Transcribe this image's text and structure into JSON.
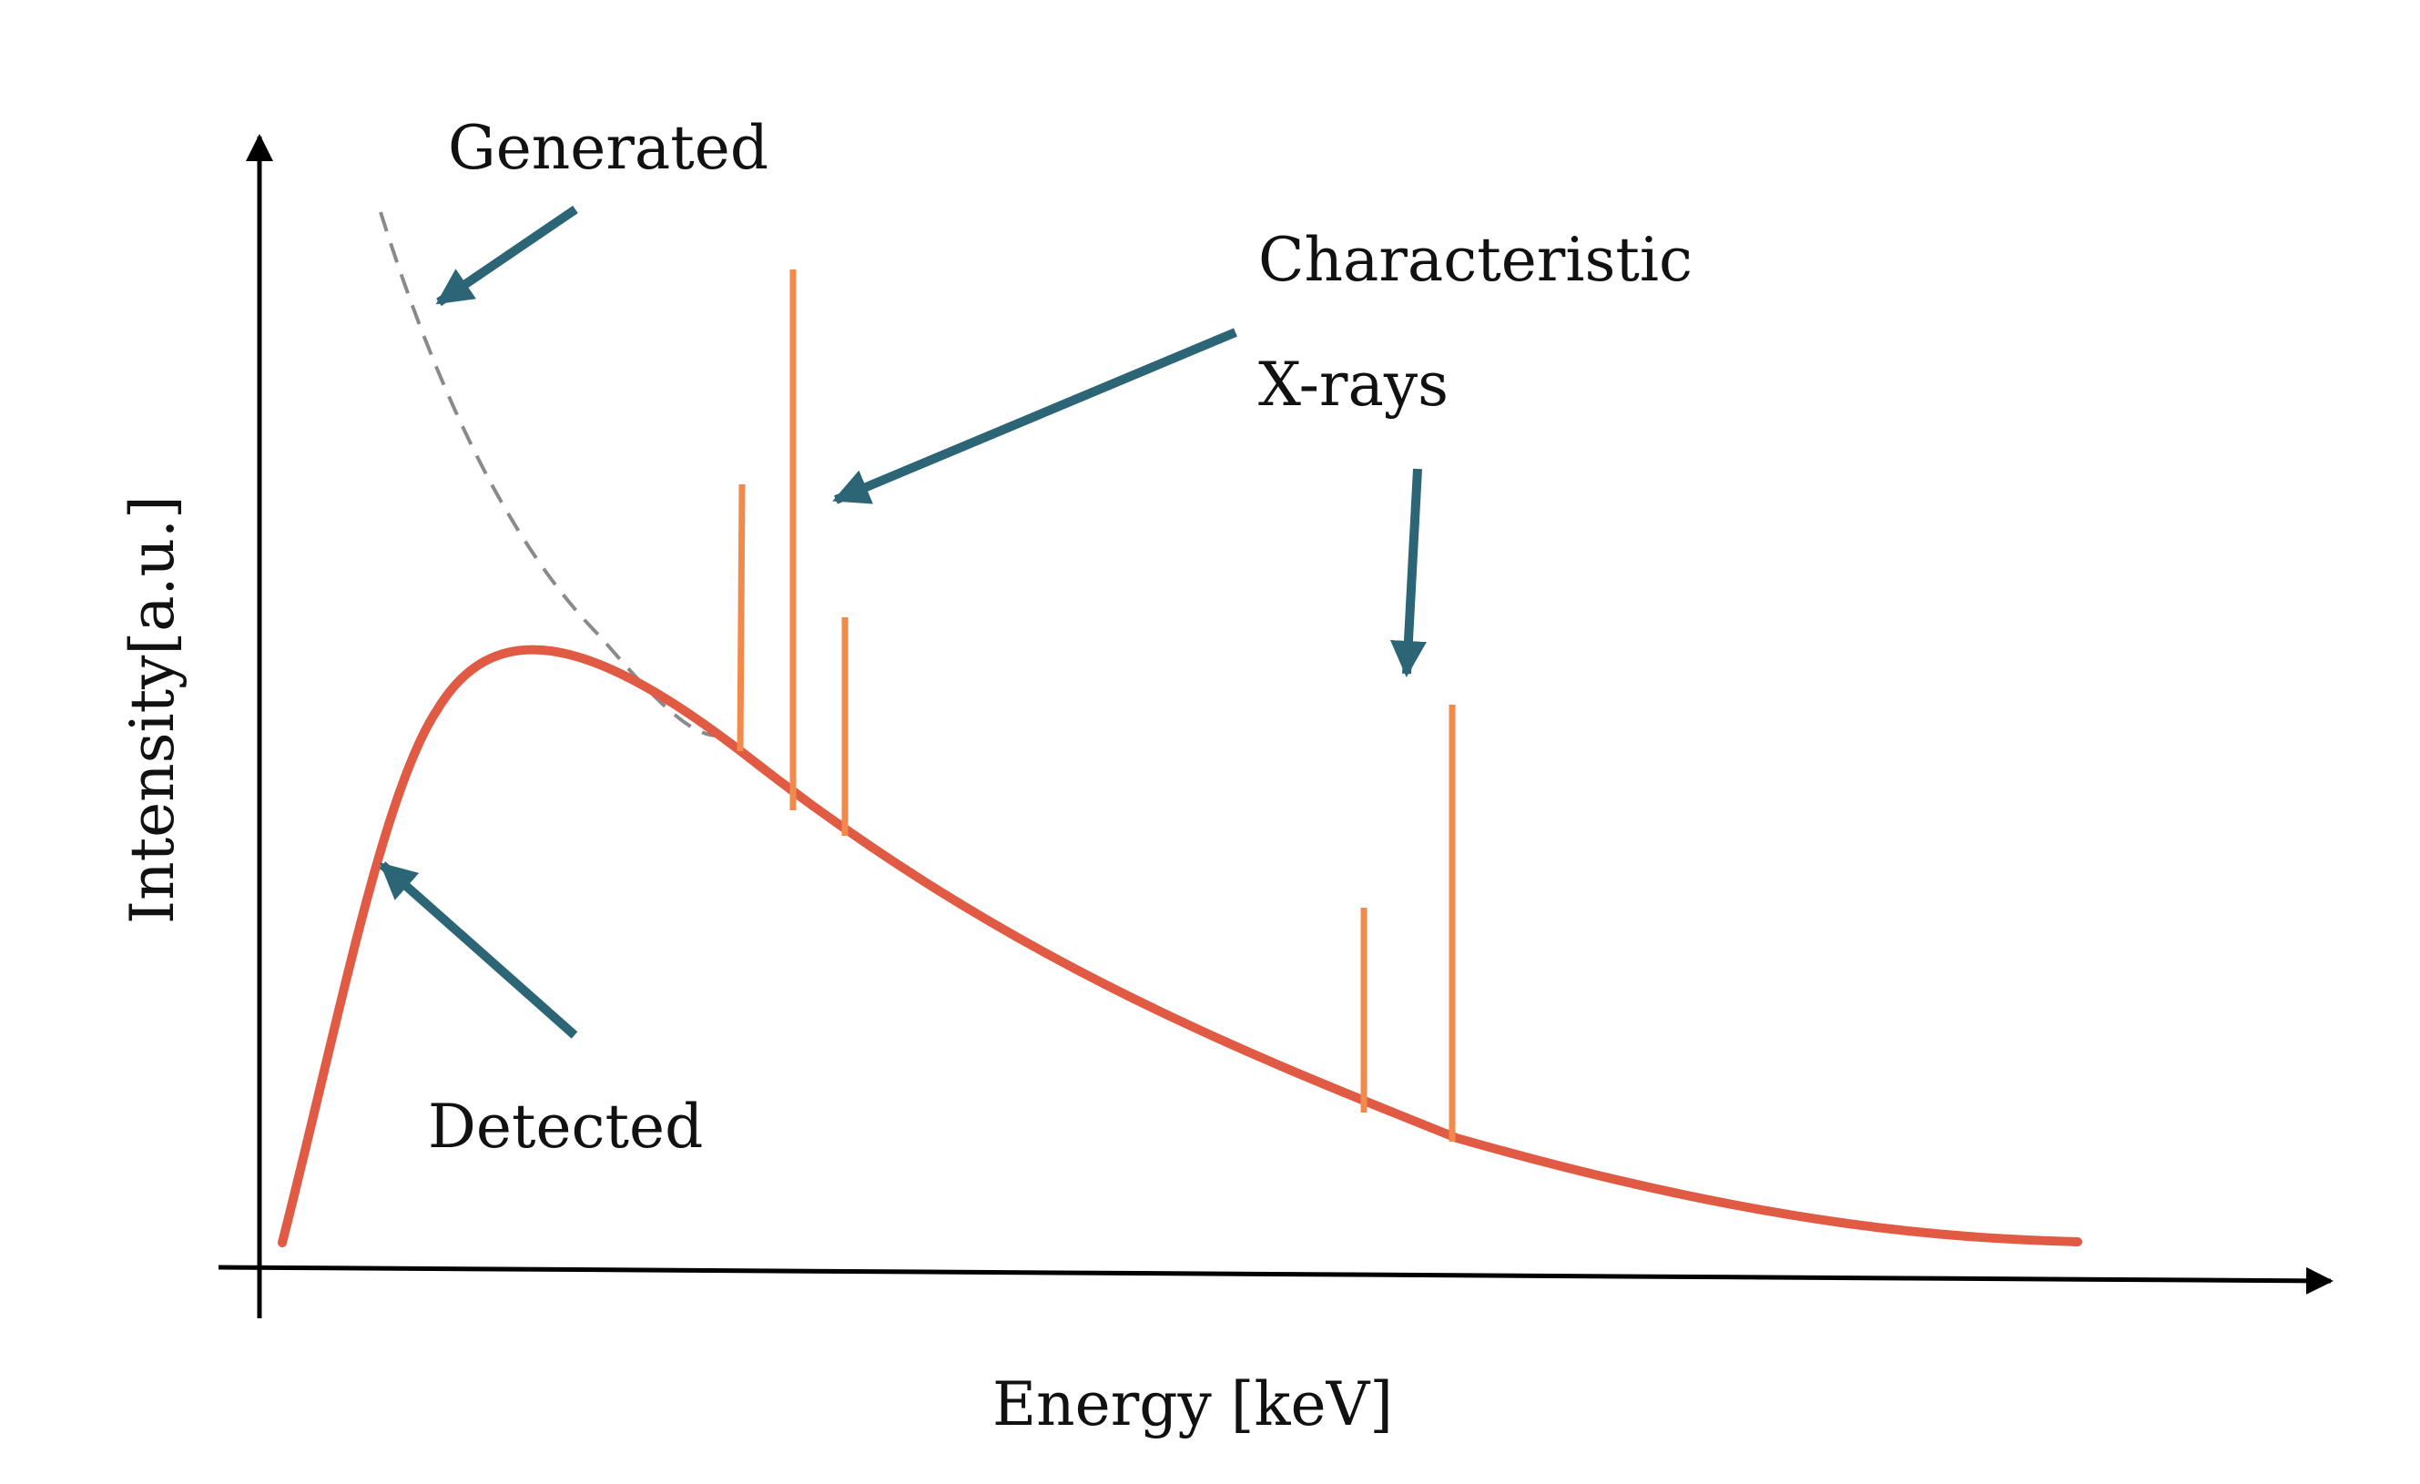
{
  "chart_data": {
    "type": "line",
    "title": "",
    "xlabel": "Energy [keV]",
    "ylabel": "Intensity[a.u.]",
    "series": [
      {
        "role": "detected",
        "name": "Detected",
        "color": "#e05a44"
      },
      {
        "role": "generated",
        "name": "Generated",
        "color": "#8a8a8a",
        "style": "dashed"
      }
    ],
    "characteristic_lines": {
      "label_line1": "Characteristic",
      "label_line2": "X-rays",
      "color": "#f28a4c"
    },
    "annotations": {
      "generated": "Generated",
      "detected": "Detected"
    },
    "arrow_color": "#2b6576",
    "axis_color": "#000000",
    "grid": false,
    "legend": "none"
  }
}
